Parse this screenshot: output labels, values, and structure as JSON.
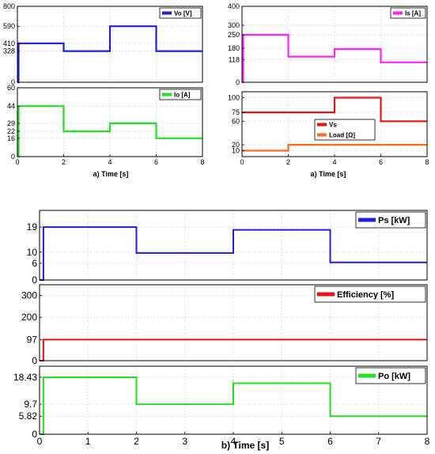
{
  "chart_data": [
    {
      "type": "line",
      "panel": "a-Vo",
      "xlim": [
        0,
        8
      ],
      "ylim": [
        0,
        800
      ],
      "x_ticks": [
        0,
        2,
        4,
        6,
        8
      ],
      "y_ticks": [
        0,
        328,
        410,
        590,
        800
      ],
      "series": [
        {
          "name": "Vo [V]",
          "color": "#1f1fe0",
          "x": [
            0,
            0.05,
            0.05,
            2,
            2,
            4,
            4,
            6,
            6,
            8
          ],
          "y": [
            0,
            0,
            410,
            410,
            328,
            328,
            590,
            590,
            328,
            328
          ]
        }
      ],
      "legend": "top-right"
    },
    {
      "type": "line",
      "panel": "a-Io",
      "xlim": [
        0,
        8
      ],
      "ylim": [
        0,
        60
      ],
      "x_ticks": [
        0,
        2,
        4,
        6,
        8
      ],
      "x_tick_labels": [
        "0",
        "2",
        "4",
        "6",
        "8"
      ],
      "y_ticks": [
        0,
        16,
        22,
        29,
        44,
        60
      ],
      "y_tick_labels": [
        "0",
        "16",
        "22",
        "29",
        "44",
        "60"
      ],
      "series": [
        {
          "name": "Io [A]",
          "color": "#22e022",
          "x": [
            0,
            0.05,
            0.05,
            2,
            2,
            4,
            4,
            6,
            6,
            8
          ],
          "y": [
            0,
            0,
            44,
            44,
            22,
            22,
            29,
            29,
            16,
            16
          ]
        }
      ],
      "xlabel": "a)  Time [s]",
      "legend": "top-right"
    },
    {
      "type": "line",
      "panel": "a-Is",
      "xlim": [
        0,
        8
      ],
      "ylim": [
        0,
        400
      ],
      "x_ticks": [
        0,
        2,
        4,
        6,
        8
      ],
      "y_ticks": [
        0,
        118,
        180,
        250,
        300,
        400
      ],
      "series": [
        {
          "name": "Is [A]",
          "color": "#ff22ff",
          "x": [
            0,
            0.05,
            0.05,
            2,
            2,
            4,
            4,
            6,
            6,
            8
          ],
          "y": [
            0,
            0,
            250,
            250,
            135,
            135,
            175,
            175,
            105,
            105
          ]
        }
      ],
      "legend": "top-right"
    },
    {
      "type": "line",
      "panel": "a-Vs-Load",
      "xlim": [
        0,
        8
      ],
      "ylim": [
        0,
        110
      ],
      "x_ticks": [
        0,
        2,
        4,
        6,
        8
      ],
      "x_tick_labels": [
        "0",
        "2",
        "4",
        "6",
        "8"
      ],
      "y_ticks": [
        10,
        20,
        60,
        75,
        100
      ],
      "y_tick_labels": [
        "10",
        "20",
        "60",
        "75",
        "100"
      ],
      "series": [
        {
          "name": "Vs",
          "color": "#ee1111",
          "x": [
            0,
            4,
            4,
            6,
            6,
            8
          ],
          "y": [
            75,
            75,
            100,
            100,
            60,
            60
          ]
        },
        {
          "name": "Load [Ω]",
          "color": "#ff6a1a",
          "x": [
            0,
            2,
            2,
            8
          ],
          "y": [
            10,
            10,
            20,
            20
          ]
        }
      ],
      "xlabel": "a)  Time [s]",
      "legend": "center"
    },
    {
      "type": "line",
      "panel": "b-Ps",
      "xlim": [
        0,
        8
      ],
      "ylim": [
        0,
        25
      ],
      "x_ticks": [
        0,
        1,
        2,
        3,
        4,
        5,
        6,
        7,
        8
      ],
      "y_ticks": [
        0,
        6,
        10,
        19
      ],
      "series": [
        {
          "name": "Ps [kW]",
          "color": "#1f1fe0",
          "x": [
            0,
            0.08,
            0.08,
            2,
            2,
            4,
            4,
            6,
            6,
            8
          ],
          "y": [
            0,
            0,
            19,
            19,
            9.7,
            9.7,
            18,
            18,
            6.3,
            6.3
          ]
        }
      ],
      "legend": "top-right"
    },
    {
      "type": "line",
      "panel": "b-Efficiency",
      "xlim": [
        0,
        8
      ],
      "ylim": [
        0,
        350
      ],
      "x_ticks": [
        0,
        1,
        2,
        3,
        4,
        5,
        6,
        7,
        8
      ],
      "y_ticks": [
        0,
        97,
        200,
        300
      ],
      "series": [
        {
          "name": "Efficiency [%]",
          "color": "#ee1111",
          "x": [
            0,
            0.08,
            0.08,
            8
          ],
          "y": [
            0,
            0,
            97,
            97
          ]
        }
      ],
      "legend": "top-right"
    },
    {
      "type": "line",
      "panel": "b-Po",
      "xlim": [
        0,
        8
      ],
      "ylim": [
        0,
        22
      ],
      "x_ticks": [
        0,
        1,
        2,
        3,
        4,
        5,
        6,
        7,
        8
      ],
      "x_tick_labels": [
        "0",
        "1",
        "2",
        "3",
        "4",
        "5",
        "6",
        "7",
        "8"
      ],
      "y_ticks": [
        0,
        5.82,
        9.7,
        18.43
      ],
      "y_tick_labels": [
        "0",
        "5.82",
        "9.7",
        "18.43"
      ],
      "series": [
        {
          "name": "Po [kW]",
          "color": "#22e022",
          "x": [
            0,
            0.08,
            0.08,
            2,
            2,
            4,
            4,
            6,
            6,
            8
          ],
          "y": [
            0,
            0,
            18.43,
            18.43,
            9.7,
            9.7,
            16.5,
            16.5,
            5.82,
            5.82
          ]
        }
      ],
      "xlabel": "b) Time [s]",
      "legend": "top-right"
    }
  ]
}
